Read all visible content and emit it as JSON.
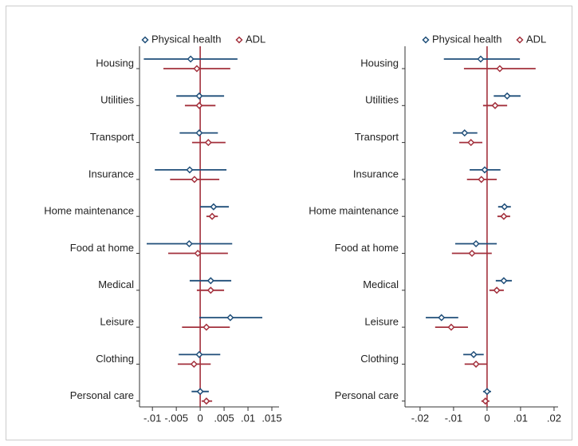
{
  "chart_data": [
    {
      "type": "coefplot",
      "categories": [
        "Housing",
        "Utilities",
        "Transport",
        "Insurance",
        "Home maintenance",
        "Food at home",
        "Medical",
        "Leisure",
        "Clothing",
        "Personal care"
      ],
      "series": [
        {
          "name": "Physical health",
          "color": "#1f4e79",
          "values": [
            -0.002,
            -0.0002,
            -0.0002,
            -0.0022,
            0.0028,
            -0.0023,
            0.0022,
            0.0063,
            -0.0002,
            0
          ],
          "lower": [
            -0.0118,
            -0.005,
            -0.0043,
            -0.0095,
            0,
            -0.0112,
            -0.0022,
            -0.0002,
            -0.0045,
            -0.0018
          ],
          "upper": [
            0.0078,
            0.005,
            0.0037,
            0.0055,
            0.006,
            0.0067,
            0.0065,
            0.013,
            0.0042,
            0.0018
          ]
        },
        {
          "name": "ADL",
          "color": "#a3303c",
          "values": [
            -0.0007,
            -0.0002,
            0.0017,
            -0.0012,
            0.0025,
            -0.0005,
            0.0022,
            0.0013,
            -0.0013,
            0.0013
          ],
          "lower": [
            -0.0077,
            -0.0032,
            -0.0017,
            -0.0063,
            0.0013,
            -0.0067,
            -0.0007,
            -0.0038,
            -0.0047,
            0.0003
          ],
          "upper": [
            0.0063,
            0.0032,
            0.0053,
            0.004,
            0.0037,
            0.0058,
            0.005,
            0.0062,
            0.0022,
            0.0025
          ]
        }
      ],
      "xlim": [
        -0.0127,
        0.0165
      ],
      "xticks": [
        {
          "value": -0.01,
          "label": "-.01"
        },
        {
          "value": -0.005,
          "label": "-.005"
        },
        0,
        {
          "value": 0.005,
          "label": ".005"
        },
        {
          "value": 0.01,
          "label": ".01"
        },
        {
          "value": 0.015,
          "label": ".015"
        }
      ],
      "xline": 0,
      "xline_color": "#a3303c"
    },
    {
      "type": "coefplot",
      "categories": [
        "Housing",
        "Utilities",
        "Transport",
        "Insurance",
        "Home maintenance",
        "Food at home",
        "Medical",
        "Leisure",
        "Clothing",
        "Personal care"
      ],
      "series": [
        {
          "name": "Physical health",
          "color": "#1f4e79",
          "values": [
            -0.0019,
            0.006,
            -0.0067,
            -0.0007,
            0.0052,
            -0.0033,
            0.005,
            -0.0136,
            -0.004,
            0
          ],
          "lower": [
            -0.0129,
            0.002,
            -0.0102,
            -0.0052,
            0.0033,
            -0.0095,
            0.0026,
            -0.0183,
            -0.0071,
            -0.0012
          ],
          "upper": [
            0.0098,
            0.01,
            -0.0029,
            0.004,
            0.0071,
            0.0029,
            0.0074,
            -0.0086,
            -0.001,
            0.0012
          ]
        },
        {
          "name": "ADL",
          "color": "#a3303c",
          "values": [
            0.0038,
            0.0024,
            -0.0048,
            -0.0017,
            0.005,
            -0.0045,
            0.0029,
            -0.0107,
            -0.0033,
            -0.0005
          ],
          "lower": [
            -0.0069,
            -0.0012,
            -0.0083,
            -0.006,
            0.0031,
            -0.0105,
            0.0007,
            -0.0155,
            -0.0067,
            -0.0017
          ],
          "upper": [
            0.0145,
            0.006,
            -0.0014,
            0.0029,
            0.0069,
            0.0014,
            0.005,
            -0.0057,
            0,
            0.0007
          ]
        }
      ],
      "xlim": [
        -0.0245,
        0.0212
      ],
      "xticks": [
        {
          "value": -0.02,
          "label": "-.02"
        },
        {
          "value": -0.01,
          "label": "-.01"
        },
        0,
        {
          "value": 0.01,
          "label": ".01"
        },
        {
          "value": 0.02,
          "label": ".02"
        }
      ],
      "xline": 0,
      "xline_color": "#a3303c"
    }
  ]
}
